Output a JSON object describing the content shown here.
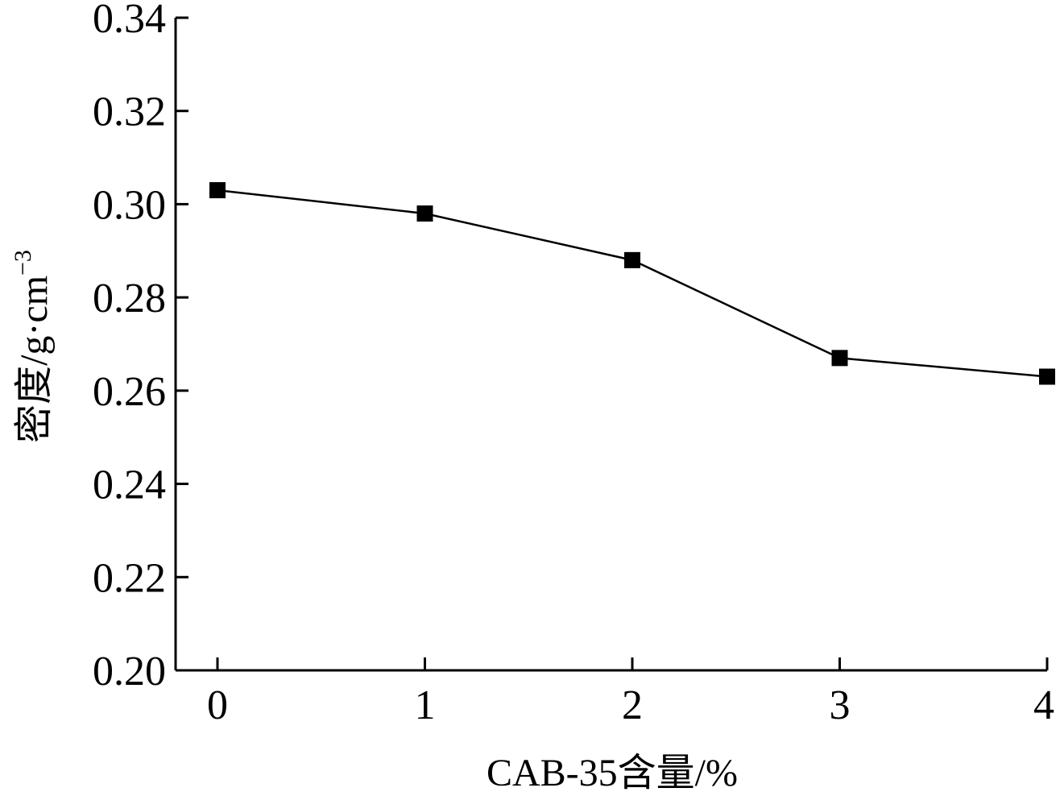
{
  "chart_data": {
    "type": "line",
    "x": [
      0,
      1,
      2,
      3,
      4
    ],
    "series": [
      {
        "values": [
          0.303,
          0.298,
          0.288,
          0.267,
          0.263
        ]
      }
    ],
    "xlabel": "CAB-35含量/%",
    "ylabel": {
      "main": "密度/g·cm",
      "superscript": "−3"
    },
    "xlim": [
      0,
      4
    ],
    "ylim": [
      0.2,
      0.34
    ],
    "xticks": [
      "0",
      "1",
      "2",
      "3",
      "4"
    ],
    "yticks": [
      "0.20",
      "0.22",
      "0.24",
      "0.26",
      "0.28",
      "0.30",
      "0.32",
      "0.34"
    ],
    "marker": "square",
    "grid": false,
    "line_color": "#000000",
    "marker_color": "#000000"
  }
}
